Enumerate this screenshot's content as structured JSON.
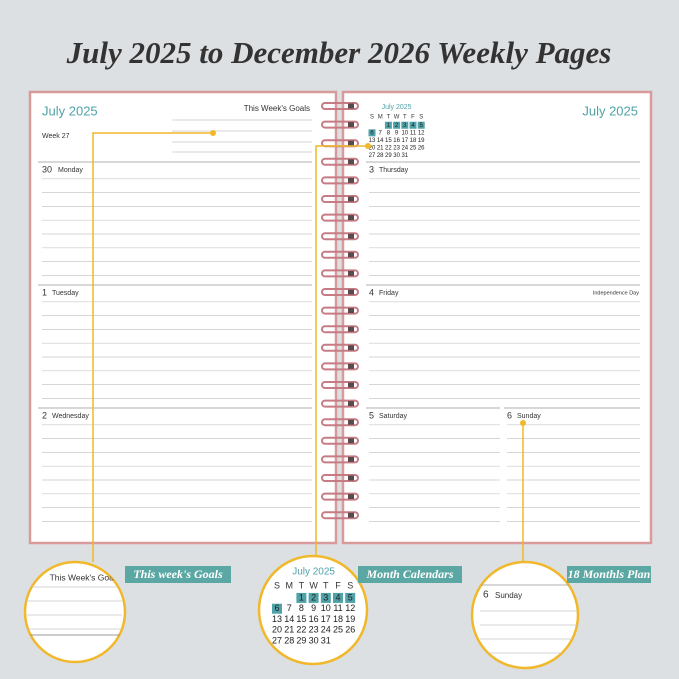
{
  "title": "July 2025 to December 2026 Weekly Pages",
  "left_page": {
    "month": "July 2025",
    "goals_label": "This Week's Goals",
    "week": "Week 27",
    "days": [
      {
        "date": "30",
        "name": "Monday"
      },
      {
        "date": "1",
        "name": "Tuesday"
      },
      {
        "date": "2",
        "name": "Wednesday"
      }
    ]
  },
  "right_page": {
    "month": "July 2025",
    "calendar": {
      "month": "July 2025",
      "weekdays": [
        "S",
        "M",
        "T",
        "W",
        "T",
        "F",
        "S"
      ],
      "weeks": [
        [
          "1",
          "2",
          "3",
          "4",
          "5"
        ],
        [
          "6",
          "7",
          "8",
          "9",
          "10",
          "11",
          "12"
        ],
        [
          "13",
          "14",
          "15",
          "16",
          "17",
          "18",
          "19"
        ],
        [
          "20",
          "21",
          "22",
          "23",
          "24",
          "25",
          "26"
        ],
        [
          "27",
          "28",
          "29",
          "30",
          "31"
        ]
      ]
    },
    "days": [
      {
        "date": "3",
        "name": "Thursday"
      },
      {
        "date": "4",
        "name": "Friday",
        "holiday": "Independence Day"
      },
      {
        "date": "5",
        "name": "Saturday"
      },
      {
        "date": "6",
        "name": "Sunday"
      }
    ]
  },
  "callouts": [
    {
      "label": "This week's Goals"
    },
    {
      "label": "Month Calendars"
    },
    {
      "label": "18 Monthls Plan"
    }
  ]
}
